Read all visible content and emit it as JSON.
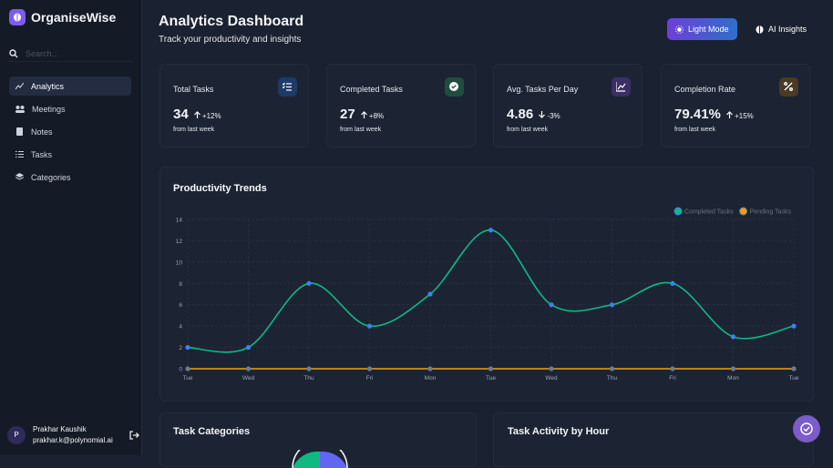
{
  "sidebar": {
    "brand": "OrganiseWise",
    "search_placeholder": "Search...",
    "nav": [
      "Analytics",
      "Meetings",
      "Notes",
      "Tasks",
      "Categories"
    ],
    "user": {
      "initial": "P",
      "name": "Prakhar Kaushik",
      "email": "prakhar.k@polynomial.ai"
    }
  },
  "header": {
    "title": "Analytics Dashboard",
    "subtitle": "Track your productivity and insights",
    "buttons": [
      "Light Mode",
      "AI Insights"
    ]
  },
  "stats": [
    {
      "label": "Total Tasks",
      "value": 34,
      "change": "+12%",
      "note": "from last week"
    },
    {
      "label": "Completed Tasks",
      "value": 27,
      "change": "+8%",
      "note": "from last week"
    },
    {
      "label": "Avg. Tasks Per Day",
      "value": 4.86,
      "change": "-3%",
      "note": "from last week"
    },
    {
      "label": "Completion Rate",
      "value": "79.41%",
      "change": "+15%",
      "note": "from last week"
    }
  ],
  "chart_data": {
    "type": "line",
    "title": "Productivity Trends",
    "categories": [
      "Tue",
      "Wed",
      "Thu",
      "Fri",
      "Mon",
      "Tue",
      "Wed",
      "Thu",
      "Fri",
      "Mon",
      "Tue"
    ],
    "series": [
      {
        "name": "Completed Tasks",
        "color": "#10b981",
        "point_color": "#3b82f6",
        "values": [
          2,
          2,
          8,
          4,
          7,
          13,
          6,
          6,
          8,
          3,
          4
        ]
      },
      {
        "name": "Pending Tasks",
        "color": "#f59e0b",
        "point_color": "#6b7c93",
        "values": [
          0,
          0,
          0,
          0,
          0,
          0,
          0,
          0,
          0,
          0,
          0
        ]
      }
    ],
    "ylim": [
      0,
      14
    ],
    "yticks": [
      0,
      2,
      4,
      6,
      8,
      10,
      12,
      14
    ],
    "grid": true,
    "legend": "top-right"
  },
  "sections": [
    "Task Categories",
    "Task Activity by Hour"
  ]
}
